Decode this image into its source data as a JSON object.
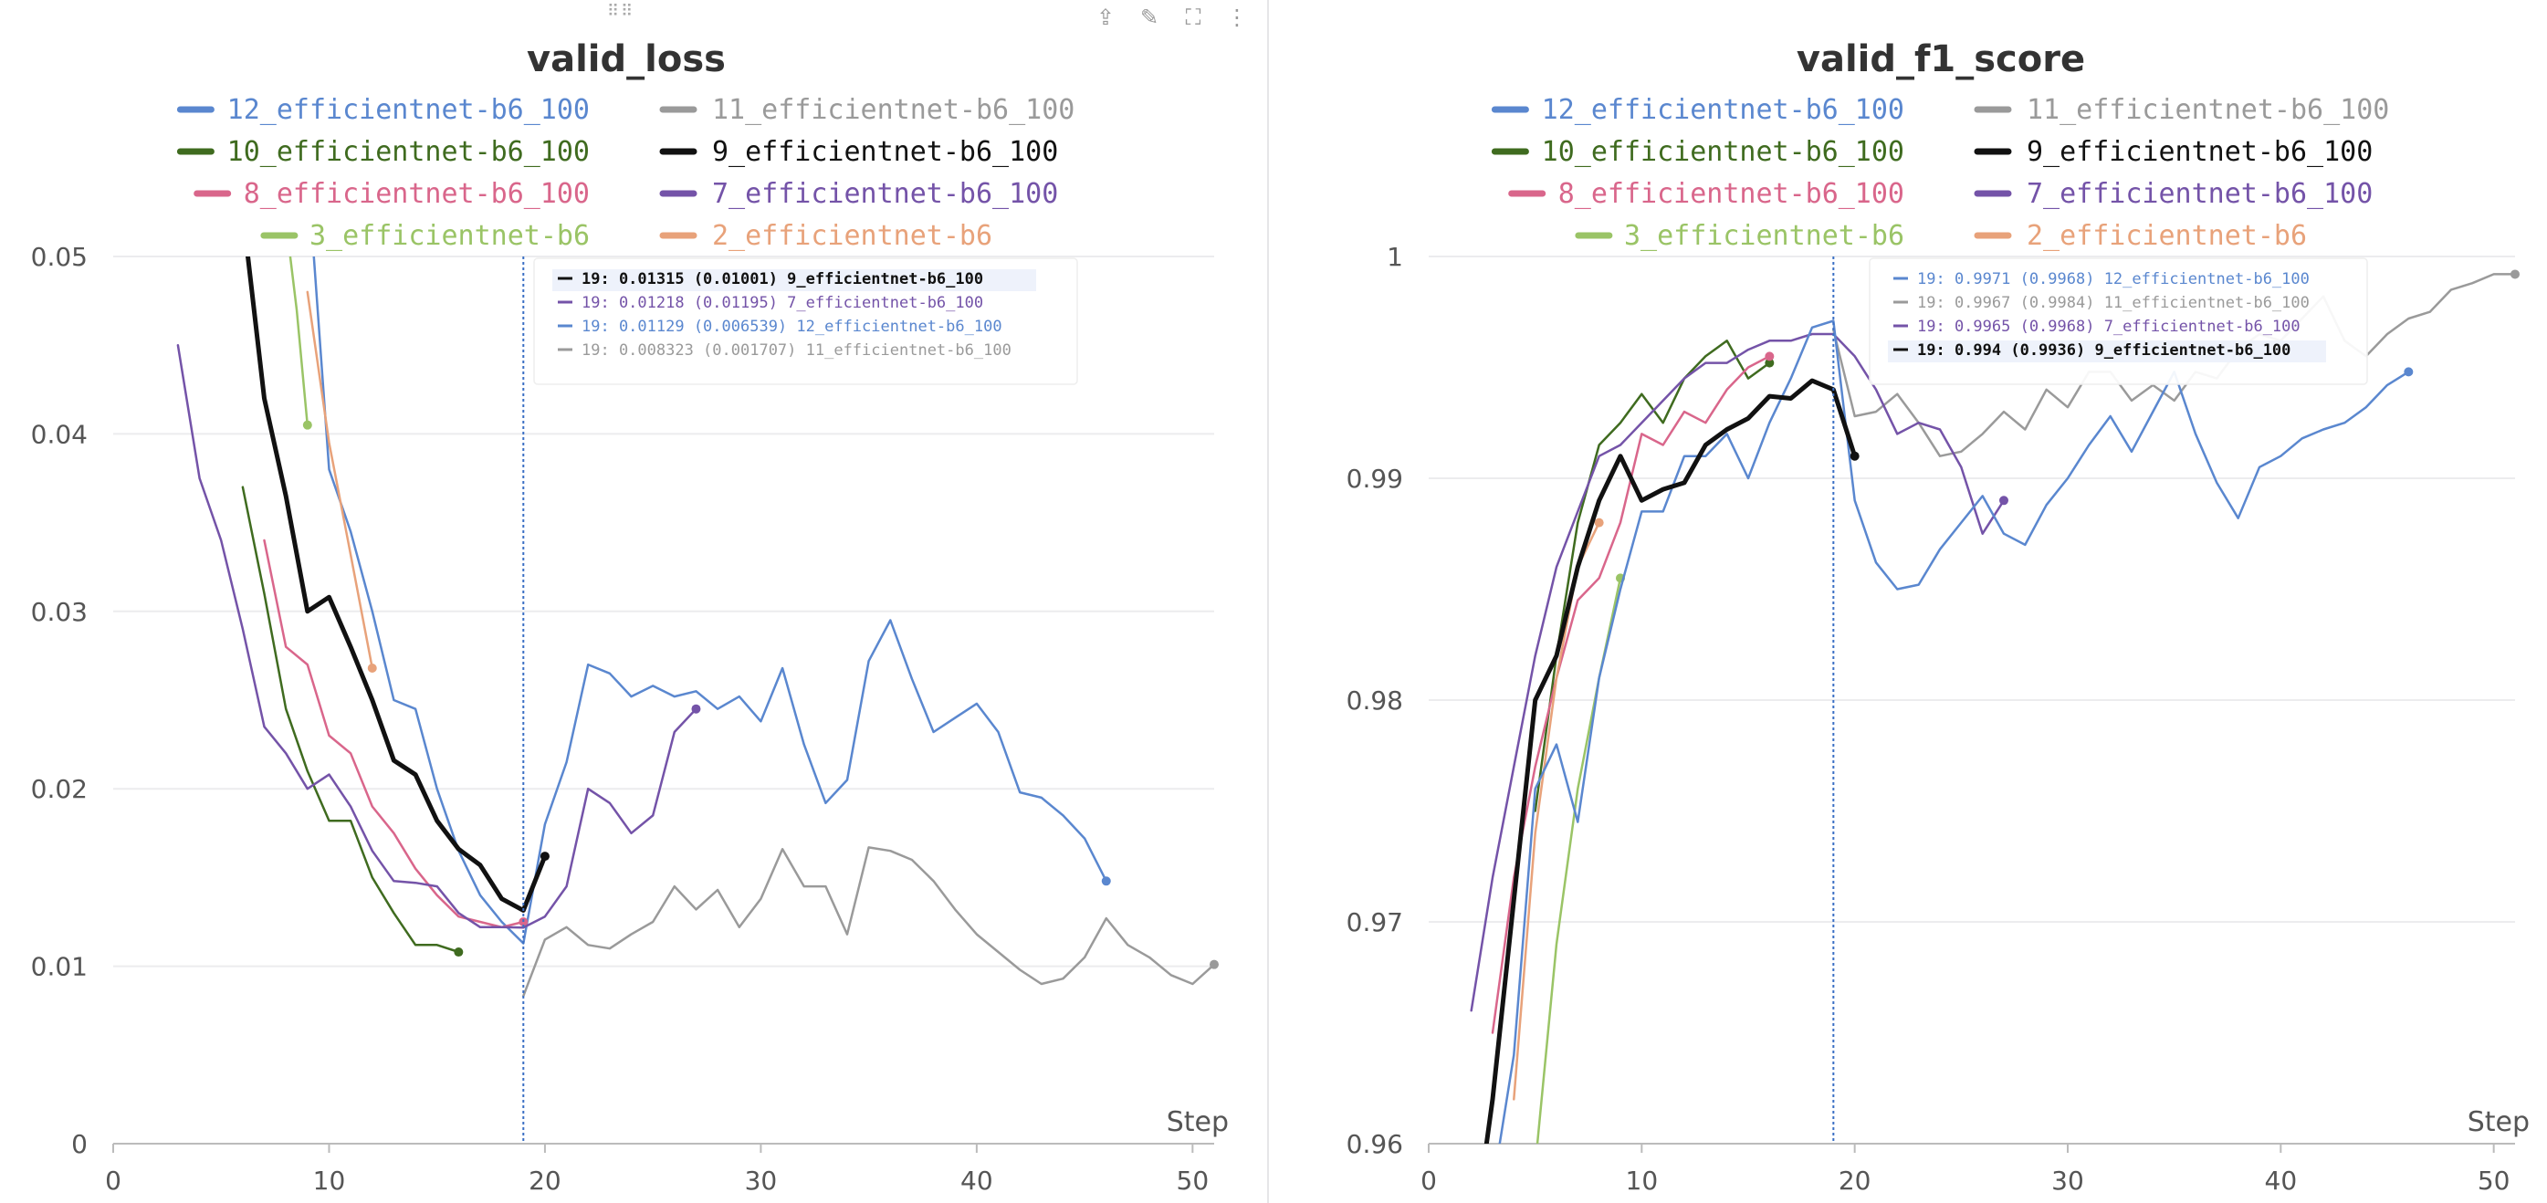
{
  "colors": {
    "12_efficientnet-b6_100": "#5a87cf",
    "11_efficientnet-b6_100": "#9a9a9a",
    "10_efficientnet-b6_100": "#3f6b1f",
    "9_efficientnet-b6_100": "#111111",
    "8_efficientnet-b6_100": "#d9668b",
    "7_efficientnet-b6_100": "#7453a8",
    "3_efficientnet-b6": "#9ac466",
    "2_efficientnet-b6": "#e8a27a"
  },
  "toolbar": {
    "icons": [
      "share-icon",
      "edit-icon",
      "fullscreen-icon",
      "more-icon"
    ]
  },
  "chart_data": [
    {
      "type": "line",
      "title": "valid_loss",
      "xlabel": "Step",
      "ylabel": "",
      "xlim": [
        0,
        51
      ],
      "ylim": [
        0,
        0.05
      ],
      "xticks": [
        "0",
        "10",
        "20",
        "30",
        "40",
        "50"
      ],
      "yticks": [
        "0",
        "0.01",
        "0.02",
        "0.03",
        "0.04",
        "0.05"
      ],
      "grid": true,
      "legend": [
        "12_efficientnet-b6_100",
        "11_efficientnet-b6_100",
        "10_efficientnet-b6_100",
        "9_efficientnet-b6_100",
        "8_efficientnet-b6_100",
        "7_efficientnet-b6_100",
        "3_efficientnet-b6",
        "2_efficientnet-b6"
      ],
      "hover_step": 19,
      "tooltip": [
        {
          "series": "9_efficientnet-b6_100",
          "text": "19: 0.01315 (0.01001) 9_efficientnet-b6_100",
          "bold": true
        },
        {
          "series": "7_efficientnet-b6_100",
          "text": "19: 0.01218 (0.01195) 7_efficientnet-b6_100",
          "bold": false
        },
        {
          "series": "12_efficientnet-b6_100",
          "text": "19: 0.01129 (0.006539) 12_efficientnet-b6_100",
          "bold": false
        },
        {
          "series": "11_efficientnet-b6_100",
          "text": "19: 0.008323 (0.001707) 11_efficientnet-b6_100",
          "bold": false
        }
      ],
      "series": [
        {
          "name": "12_efficientnet-b6_100",
          "width": 2.5,
          "x": [
            9,
            10,
            11,
            12,
            13,
            14,
            15,
            16,
            17,
            18,
            19,
            20,
            21,
            22,
            23,
            24,
            25,
            26,
            27,
            28,
            29,
            30,
            31,
            32,
            33,
            34,
            35,
            36,
            37,
            38,
            39,
            40,
            41,
            42,
            43,
            44,
            45,
            46
          ],
          "y": [
            0.055,
            0.038,
            0.0345,
            0.03,
            0.025,
            0.0245,
            0.02,
            0.0165,
            0.014,
            0.0125,
            0.01129,
            0.018,
            0.0215,
            0.027,
            0.0265,
            0.0252,
            0.0258,
            0.0252,
            0.0255,
            0.0245,
            0.0252,
            0.0238,
            0.0268,
            0.0225,
            0.0192,
            0.0205,
            0.0272,
            0.0295,
            0.0262,
            0.0232,
            0.024,
            0.0248,
            0.0232,
            0.0198,
            0.0195,
            0.0185,
            0.0172,
            0.0148
          ]
        },
        {
          "name": "11_efficientnet-b6_100",
          "width": 2.5,
          "x": [
            19,
            20,
            21,
            22,
            23,
            24,
            25,
            26,
            27,
            28,
            29,
            30,
            31,
            32,
            33,
            34,
            35,
            36,
            37,
            38,
            39,
            40,
            41,
            42,
            43,
            44,
            45,
            46,
            47,
            48,
            49,
            50,
            51
          ],
          "y": [
            0.008323,
            0.0115,
            0.0122,
            0.0112,
            0.011,
            0.0118,
            0.0125,
            0.0145,
            0.0132,
            0.0143,
            0.0122,
            0.0138,
            0.0166,
            0.0145,
            0.0145,
            0.0118,
            0.0167,
            0.0165,
            0.016,
            0.0148,
            0.0132,
            0.0118,
            0.0108,
            0.0098,
            0.009,
            0.0093,
            0.0105,
            0.0127,
            0.0112,
            0.0105,
            0.0095,
            0.009,
            0.0101
          ]
        },
        {
          "name": "10_efficientnet-b6_100",
          "width": 2.5,
          "x": [
            6,
            7,
            8,
            9,
            10,
            11,
            12,
            13,
            14,
            15,
            16
          ],
          "y": [
            0.037,
            0.031,
            0.0245,
            0.021,
            0.0182,
            0.0182,
            0.015,
            0.013,
            0.0112,
            0.0112,
            0.0108
          ]
        },
        {
          "name": "8_efficientnet-b6_100",
          "width": 2.5,
          "x": [
            7,
            8,
            9,
            10,
            11,
            12,
            13,
            14,
            15,
            16,
            17,
            18,
            19
          ],
          "y": [
            0.034,
            0.028,
            0.027,
            0.023,
            0.022,
            0.019,
            0.0175,
            0.0155,
            0.014,
            0.0128,
            0.0125,
            0.0122,
            0.0125
          ]
        },
        {
          "name": "7_efficientnet-b6_100",
          "width": 2.5,
          "x": [
            3,
            4,
            5,
            6,
            7,
            8,
            9,
            10,
            11,
            12,
            13,
            14,
            15,
            16,
            17,
            18,
            19,
            20,
            21,
            22,
            23,
            24,
            25,
            26,
            27
          ],
          "y": [
            0.045,
            0.0375,
            0.034,
            0.029,
            0.0235,
            0.022,
            0.02,
            0.0208,
            0.019,
            0.0165,
            0.0148,
            0.0147,
            0.0145,
            0.013,
            0.0122,
            0.0122,
            0.01218,
            0.0128,
            0.0145,
            0.02,
            0.0192,
            0.0175,
            0.0185,
            0.0232,
            0.0245
          ]
        },
        {
          "name": "3_efficientnet-b6",
          "width": 2.5,
          "x": [
            8,
            8.5,
            9
          ],
          "y": [
            0.052,
            0.047,
            0.0405
          ]
        },
        {
          "name": "2_efficientnet-b6",
          "width": 2.5,
          "x": [
            9,
            10,
            11,
            12
          ],
          "y": [
            0.048,
            0.0395,
            0.0332,
            0.0268
          ]
        },
        {
          "name": "9_efficientnet-b6_100",
          "width": 5,
          "x": [
            6,
            7,
            8,
            9,
            10,
            11,
            12,
            13,
            14,
            15,
            16,
            17,
            18,
            19,
            20
          ],
          "y": [
            0.0525,
            0.042,
            0.0365,
            0.03,
            0.0308,
            0.028,
            0.025,
            0.0216,
            0.0208,
            0.0182,
            0.0166,
            0.0157,
            0.0138,
            0.01315,
            0.0162
          ]
        }
      ]
    },
    {
      "type": "line",
      "title": "valid_f1_score",
      "xlabel": "Step",
      "ylabel": "",
      "xlim": [
        0,
        51
      ],
      "ylim": [
        0.96,
        1
      ],
      "xticks": [
        "0",
        "10",
        "20",
        "30",
        "40",
        "50"
      ],
      "yticks": [
        "0.96",
        "0.97",
        "0.98",
        "0.99",
        "1"
      ],
      "grid": true,
      "legend": [
        "12_efficientnet-b6_100",
        "11_efficientnet-b6_100",
        "10_efficientnet-b6_100",
        "9_efficientnet-b6_100",
        "8_efficientnet-b6_100",
        "7_efficientnet-b6_100",
        "3_efficientnet-b6",
        "2_efficientnet-b6"
      ],
      "hover_step": 19,
      "tooltip": [
        {
          "series": "12_efficientnet-b6_100",
          "text": "19: 0.9971 (0.9968) 12_efficientnet-b6_100",
          "bold": false
        },
        {
          "series": "11_efficientnet-b6_100",
          "text": "19: 0.9967 (0.9984) 11_efficientnet-b6_100",
          "bold": false
        },
        {
          "series": "7_efficientnet-b6_100",
          "text": "19: 0.9965 (0.9968) 7_efficientnet-b6_100",
          "bold": false
        },
        {
          "series": "9_efficientnet-b6_100",
          "text": "19: 0.994 (0.9936) 9_efficientnet-b6_100",
          "bold": true
        }
      ],
      "series": [
        {
          "name": "11_efficientnet-b6_100",
          "width": 2.5,
          "x": [
            19,
            20,
            21,
            22,
            23,
            24,
            25,
            26,
            27,
            28,
            29,
            30,
            31,
            32,
            33,
            34,
            35,
            36,
            37,
            38,
            39,
            40,
            41,
            42,
            43,
            44,
            45,
            46,
            47,
            48,
            49,
            50,
            51
          ],
          "y": [
            0.9967,
            0.9928,
            0.993,
            0.9938,
            0.9925,
            0.991,
            0.9912,
            0.992,
            0.993,
            0.9922,
            0.994,
            0.9932,
            0.9948,
            0.9948,
            0.9935,
            0.9942,
            0.9935,
            0.9948,
            0.9945,
            0.9958,
            0.9965,
            0.9962,
            0.9972,
            0.9982,
            0.9962,
            0.9955,
            0.9965,
            0.9972,
            0.9975,
            0.9985,
            0.9988,
            0.9992,
            0.9992
          ]
        },
        {
          "name": "10_efficientnet-b6_100",
          "width": 2.5,
          "x": [
            5,
            6,
            7,
            8,
            9,
            10,
            11,
            12,
            13,
            14,
            15,
            16
          ],
          "y": [
            0.975,
            0.982,
            0.988,
            0.9915,
            0.9925,
            0.9938,
            0.9925,
            0.9945,
            0.9955,
            0.9962,
            0.9945,
            0.9952
          ]
        },
        {
          "name": "8_efficientnet-b6_100",
          "width": 2.5,
          "x": [
            3,
            4,
            5,
            6,
            7,
            8,
            9,
            10,
            11,
            12,
            13,
            14,
            15,
            16
          ],
          "y": [
            0.965,
            0.972,
            0.977,
            0.981,
            0.9845,
            0.9855,
            0.988,
            0.992,
            0.9915,
            0.993,
            0.9925,
            0.994,
            0.995,
            0.9955
          ]
        },
        {
          "name": "3_efficientnet-b6",
          "width": 2.5,
          "x": [
            5,
            6,
            7,
            8,
            9
          ],
          "y": [
            0.959,
            0.969,
            0.976,
            0.981,
            0.9855
          ]
        },
        {
          "name": "2_efficientnet-b6",
          "width": 2.5,
          "x": [
            4,
            5,
            6,
            7,
            8
          ],
          "y": [
            0.962,
            0.974,
            0.981,
            0.986,
            0.988
          ]
        },
        {
          "name": "7_efficientnet-b6_100",
          "width": 2.5,
          "x": [
            2,
            3,
            4,
            5,
            6,
            7,
            8,
            9,
            10,
            11,
            12,
            13,
            14,
            15,
            16,
            17,
            18,
            19,
            20,
            21,
            22,
            23,
            24,
            25,
            26,
            27
          ],
          "y": [
            0.966,
            0.972,
            0.977,
            0.982,
            0.986,
            0.9885,
            0.991,
            0.9915,
            0.9925,
            0.9935,
            0.9945,
            0.9952,
            0.9952,
            0.9958,
            0.9962,
            0.9962,
            0.9965,
            0.9965,
            0.9955,
            0.994,
            0.992,
            0.9925,
            0.9922,
            0.9905,
            0.9875,
            0.989
          ]
        },
        {
          "name": "12_efficientnet-b6_100",
          "width": 2.5,
          "x": [
            3,
            4,
            5,
            6,
            7,
            8,
            9,
            10,
            11,
            12,
            13,
            14,
            15,
            16,
            17,
            18,
            19,
            20,
            21,
            22,
            23,
            24,
            25,
            26,
            27,
            28,
            29,
            30,
            31,
            32,
            33,
            34,
            35,
            36,
            37,
            38,
            39,
            40,
            41,
            42,
            43,
            44,
            45,
            46
          ],
          "y": [
            0.958,
            0.964,
            0.976,
            0.978,
            0.9745,
            0.981,
            0.985,
            0.9885,
            0.9885,
            0.991,
            0.991,
            0.992,
            0.99,
            0.9925,
            0.9945,
            0.9968,
            0.9971,
            0.989,
            0.9862,
            0.985,
            0.9852,
            0.9868,
            0.988,
            0.9892,
            0.9875,
            0.987,
            0.9888,
            0.99,
            0.9915,
            0.9928,
            0.9912,
            0.993,
            0.9948,
            0.992,
            0.9898,
            0.9882,
            0.9905,
            0.991,
            0.9918,
            0.9922,
            0.9925,
            0.9932,
            0.9942,
            0.9948
          ]
        },
        {
          "name": "9_efficientnet-b6_100",
          "width": 5,
          "x": [
            2,
            3,
            4,
            5,
            6,
            7,
            8,
            9,
            10,
            11,
            12,
            13,
            14,
            15,
            16,
            17,
            18,
            19,
            20
          ],
          "y": [
            0.955,
            0.962,
            0.971,
            0.98,
            0.982,
            0.986,
            0.989,
            0.991,
            0.989,
            0.9895,
            0.9898,
            0.9915,
            0.9922,
            0.9927,
            0.9937,
            0.9936,
            0.9944,
            0.994,
            0.991
          ]
        }
      ]
    }
  ]
}
